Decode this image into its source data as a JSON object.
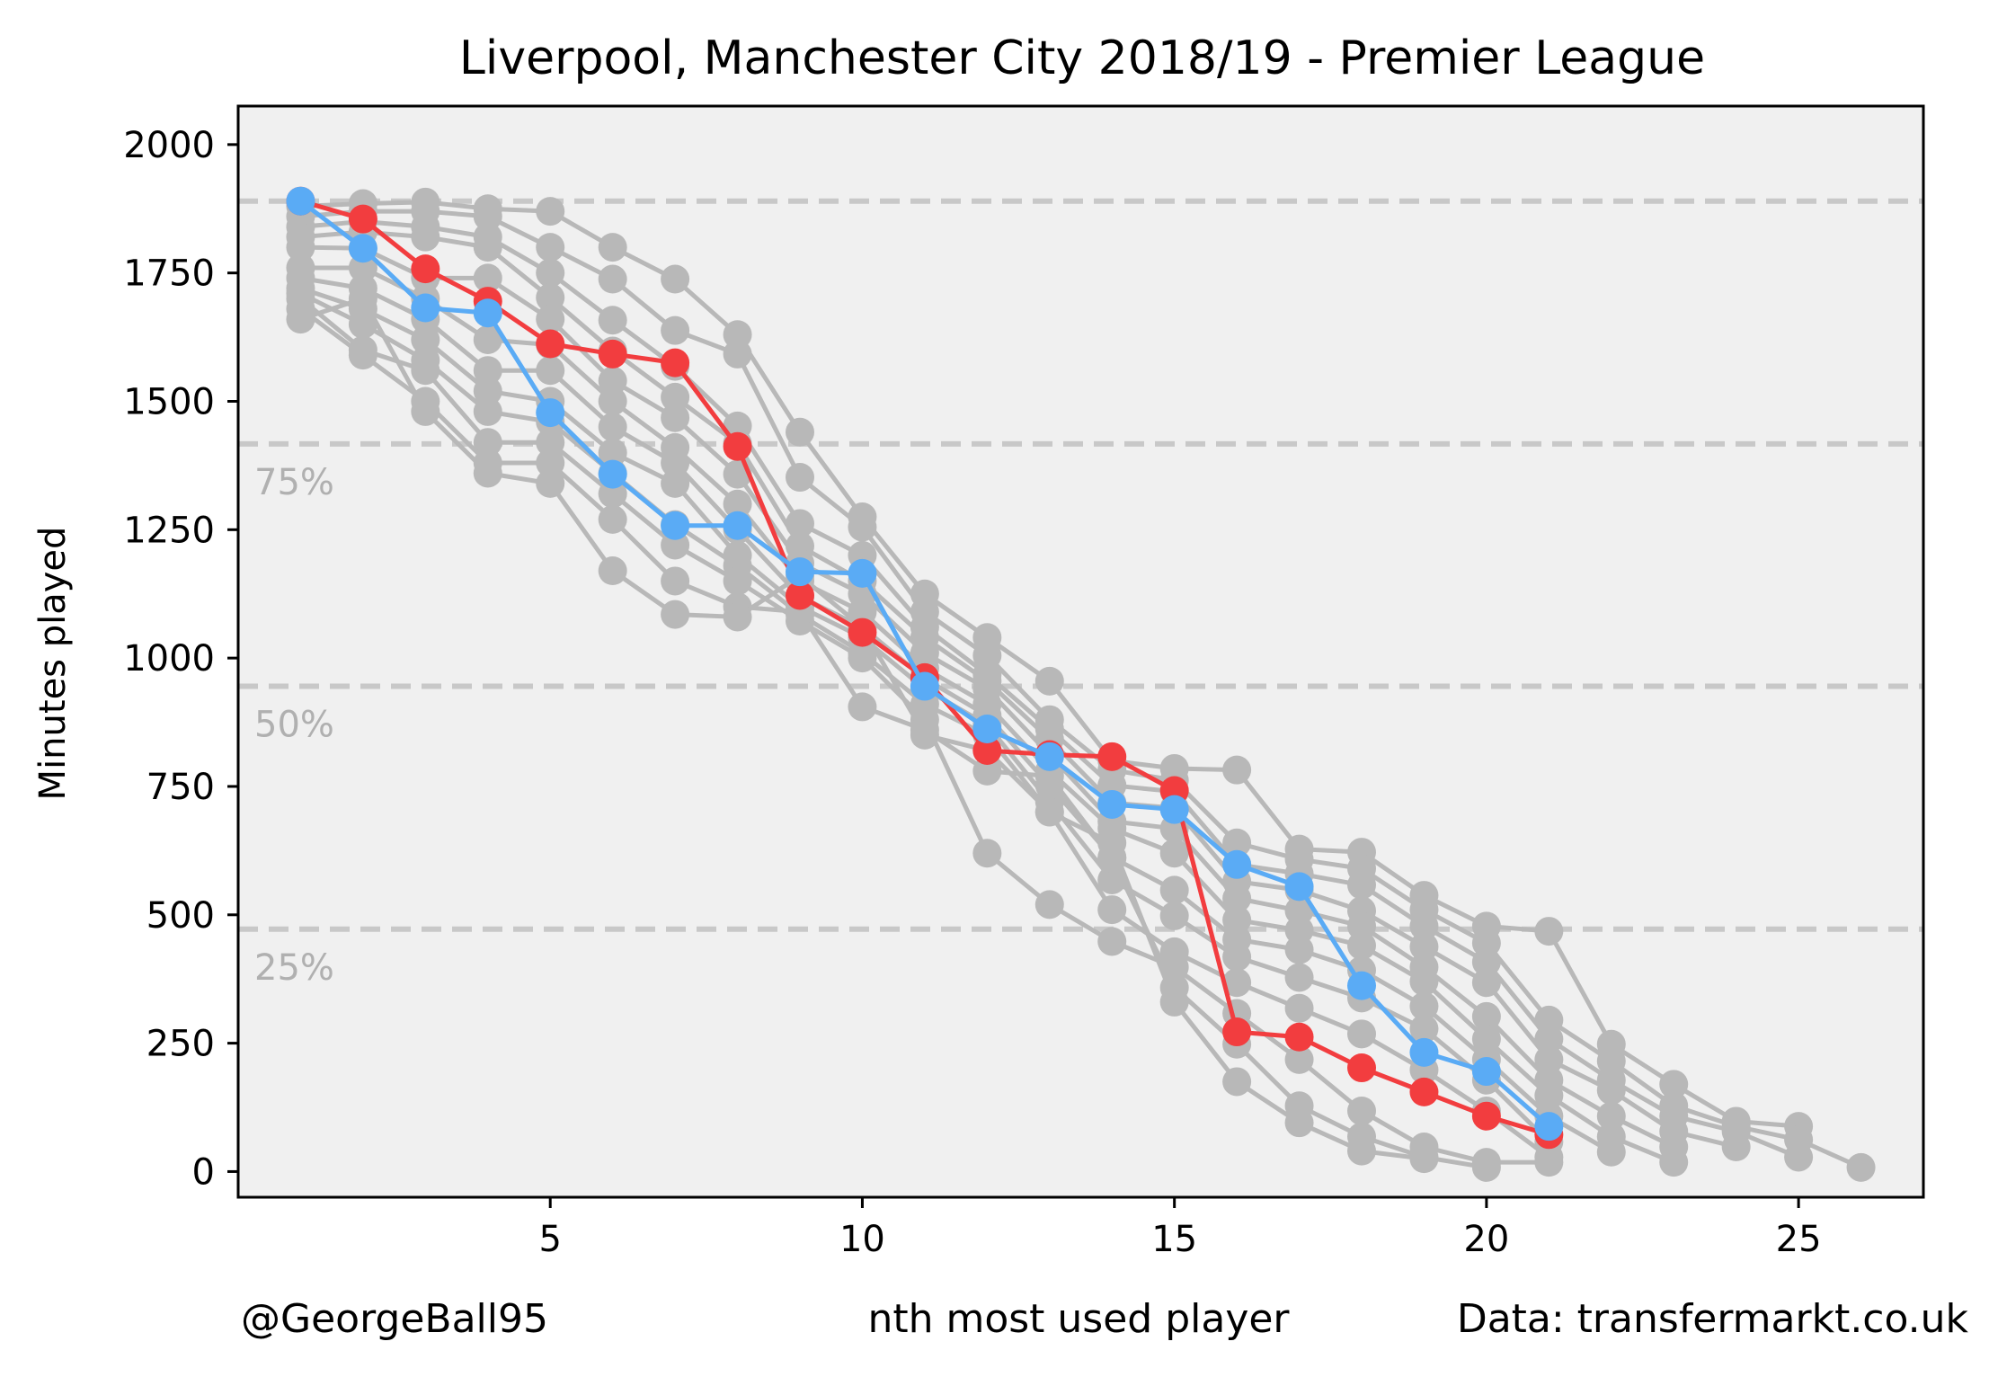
{
  "chart_data": {
    "type": "line",
    "title": "Liverpool, Manchester City 2018/19 - Premier League",
    "xlabel": "nth most used player",
    "ylabel": "Minutes played",
    "xlim": [
      0,
      27
    ],
    "ylim": [
      -50,
      2075
    ],
    "xticks": [
      5,
      10,
      15,
      20,
      25
    ],
    "yticks": [
      0,
      250,
      500,
      750,
      1000,
      1250,
      1500,
      1750,
      2000
    ],
    "grid": false,
    "reference_lines": [
      {
        "y": 1890,
        "label": ""
      },
      {
        "y": 1417,
        "label": "75%"
      },
      {
        "y": 945,
        "label": "50%"
      },
      {
        "y": 472,
        "label": "25%"
      }
    ],
    "series": [
      {
        "color": "#f23d3f",
        "highlight": true,
        "x": [
          1,
          2,
          3,
          4,
          5,
          6,
          7,
          8,
          9,
          10,
          11,
          12,
          13,
          14,
          15,
          16,
          17,
          18,
          19,
          20,
          21
        ],
        "values": [
          1890,
          1855,
          1758,
          1695,
          1612,
          1592,
          1575,
          1412,
          1122,
          1050,
          962,
          820,
          812,
          808,
          742,
          272,
          262,
          202,
          155,
          108,
          72
        ]
      },
      {
        "color": "#5aabf5",
        "highlight": true,
        "x": [
          1,
          2,
          3,
          4,
          5,
          6,
          7,
          8,
          9,
          10,
          11,
          12,
          13,
          14,
          15,
          16,
          17,
          18,
          19,
          20,
          21
        ],
        "values": [
          1890,
          1798,
          1682,
          1672,
          1478,
          1358,
          1258,
          1258,
          1168,
          1165,
          945,
          862,
          808,
          715,
          705,
          598,
          555,
          362,
          232,
          195,
          88
        ]
      },
      {
        "color": "#b8b8b8",
        "x": [
          1,
          2,
          3,
          4,
          5,
          6,
          7,
          8,
          9,
          10,
          11,
          12,
          13,
          14,
          15,
          16,
          17,
          18,
          19,
          20,
          21,
          22,
          23,
          24,
          25
        ],
        "values": [
          1880,
          1885,
          1888,
          1875,
          1870,
          1800,
          1738,
          1630,
          1440,
          1275,
          1125,
          1040,
          955,
          800,
          785,
          782,
          628,
          622,
          538,
          478,
          468,
          248,
          170,
          98,
          88
        ]
      },
      {
        "color": "#b8b8b8",
        "x": [
          1,
          2,
          3,
          4,
          5,
          6,
          7,
          8,
          9,
          10,
          11,
          12,
          13,
          14,
          15,
          16,
          17,
          18,
          19,
          20,
          21,
          22,
          23,
          24,
          25,
          26
        ],
        "values": [
          1860,
          1870,
          1870,
          1860,
          1800,
          1738,
          1638,
          1592,
          1352,
          1255,
          1090,
          1005,
          880,
          782,
          762,
          640,
          608,
          590,
          510,
          445,
          295,
          215,
          128,
          88,
          62,
          8
        ]
      },
      {
        "color": "#b8b8b8",
        "x": [
          1,
          2,
          3,
          4,
          5,
          6,
          7,
          8,
          9,
          10,
          11,
          12,
          13,
          14,
          15,
          16,
          17,
          18,
          19,
          20,
          21,
          22,
          23,
          24,
          25
        ],
        "values": [
          1840,
          1850,
          1840,
          1820,
          1750,
          1658,
          1568,
          1452,
          1262,
          1200,
          1060,
          968,
          862,
          752,
          740,
          598,
          580,
          558,
          478,
          408,
          258,
          178,
          108,
          78,
          28
        ]
      },
      {
        "color": "#b8b8b8",
        "x": [
          1,
          2,
          3,
          4,
          5,
          6,
          7,
          8,
          9,
          10,
          11,
          12,
          13,
          14,
          15,
          16,
          17,
          18,
          19,
          20,
          21,
          22,
          23,
          24
        ],
        "values": [
          1820,
          1830,
          1820,
          1800,
          1702,
          1598,
          1508,
          1418,
          1218,
          1150,
          1040,
          955,
          842,
          718,
          708,
          565,
          548,
          508,
          438,
          368,
          218,
          158,
          78,
          48
        ]
      },
      {
        "color": "#b8b8b8",
        "x": [
          1,
          2,
          3,
          4,
          5,
          6,
          7,
          8,
          9,
          10,
          11,
          12,
          13,
          14,
          15,
          16,
          17,
          18,
          19,
          20,
          21,
          22,
          23
        ],
        "values": [
          1800,
          1798,
          1740,
          1740,
          1660,
          1540,
          1468,
          1358,
          1185,
          1125,
          1010,
          940,
          812,
          682,
          668,
          532,
          508,
          478,
          398,
          302,
          178,
          108,
          48
        ]
      },
      {
        "color": "#b8b8b8",
        "x": [
          1,
          2,
          3,
          4,
          5,
          6,
          7,
          8,
          9,
          10,
          11,
          12,
          13,
          14,
          15,
          16,
          17,
          18,
          19,
          20,
          21,
          22,
          23
        ],
        "values": [
          1760,
          1760,
          1700,
          1620,
          1610,
          1500,
          1410,
          1300,
          1150,
          1090,
          980,
          910,
          780,
          668,
          620,
          490,
          470,
          440,
          370,
          258,
          148,
          68,
          18
        ]
      },
      {
        "color": "#b8b8b8",
        "x": [
          1,
          2,
          3,
          4,
          5,
          6,
          7,
          8,
          9,
          10,
          11,
          12,
          13,
          14,
          15,
          16,
          17,
          18,
          19,
          20,
          21,
          22
        ],
        "values": [
          1740,
          1720,
          1660,
          1560,
          1560,
          1450,
          1380,
          1250,
          1120,
          1060,
          960,
          888,
          752,
          612,
          548,
          452,
          432,
          392,
          322,
          218,
          108,
          38
        ]
      },
      {
        "color": "#b8b8b8",
        "x": [
          1,
          2,
          3,
          4,
          5,
          6,
          7,
          8,
          9,
          10,
          11,
          12,
          13,
          14,
          15,
          16,
          17,
          18,
          19,
          20,
          21
        ],
        "values": [
          1720,
          1680,
          1620,
          1520,
          1500,
          1400,
          1340,
          1200,
          1100,
          1040,
          940,
          870,
          720,
          568,
          498,
          418,
          378,
          338,
          278,
          178,
          58
        ]
      },
      {
        "color": "#b8b8b8",
        "x": [
          1,
          2,
          3,
          4,
          5,
          6,
          7,
          8,
          9,
          10,
          11,
          12,
          13,
          14,
          15,
          16,
          17,
          18,
          19,
          20,
          21
        ],
        "values": [
          1710,
          1650,
          1580,
          1480,
          1460,
          1360,
          1260,
          1180,
          1085,
          1010,
          910,
          850,
          700,
          510,
          428,
          368,
          318,
          268,
          198,
          118,
          28
        ]
      },
      {
        "color": "#b8b8b8",
        "x": [
          1,
          2,
          3,
          4,
          5,
          6,
          7,
          8,
          9,
          10,
          11,
          12,
          13,
          14,
          15,
          16,
          17,
          18,
          19,
          20,
          21
        ],
        "values": [
          1700,
          1600,
          1560,
          1420,
          1420,
          1320,
          1220,
          1150,
          1072,
          1000,
          880,
          620,
          520,
          448,
          398,
          308,
          218,
          118,
          48,
          18,
          18
        ]
      },
      {
        "color": "#b8b8b8",
        "x": [
          1,
          2,
          3,
          4,
          5,
          6,
          7,
          8,
          9,
          10,
          11,
          12,
          13,
          14,
          15,
          16,
          17,
          18,
          19,
          20
        ],
        "values": [
          1680,
          1590,
          1500,
          1380,
          1380,
          1270,
          1150,
          1100,
          1090,
          905,
          860,
          780,
          770,
          610,
          358,
          248,
          128,
          68,
          28,
          8
        ]
      },
      {
        "color": "#b8b8b8",
        "x": [
          1,
          2,
          3,
          4,
          5,
          6,
          7,
          8,
          9,
          10,
          11,
          12,
          13,
          14,
          15,
          16,
          17,
          18,
          19
        ],
        "values": [
          1660,
          1700,
          1480,
          1360,
          1340,
          1170,
          1085,
          1080,
          1160,
          1060,
          850,
          820,
          700,
          640,
          330,
          175,
          95,
          40,
          25
        ]
      }
    ]
  },
  "footer": {
    "left": "@GeorgeBall95",
    "right": "Data: transfermarkt.co.uk"
  }
}
